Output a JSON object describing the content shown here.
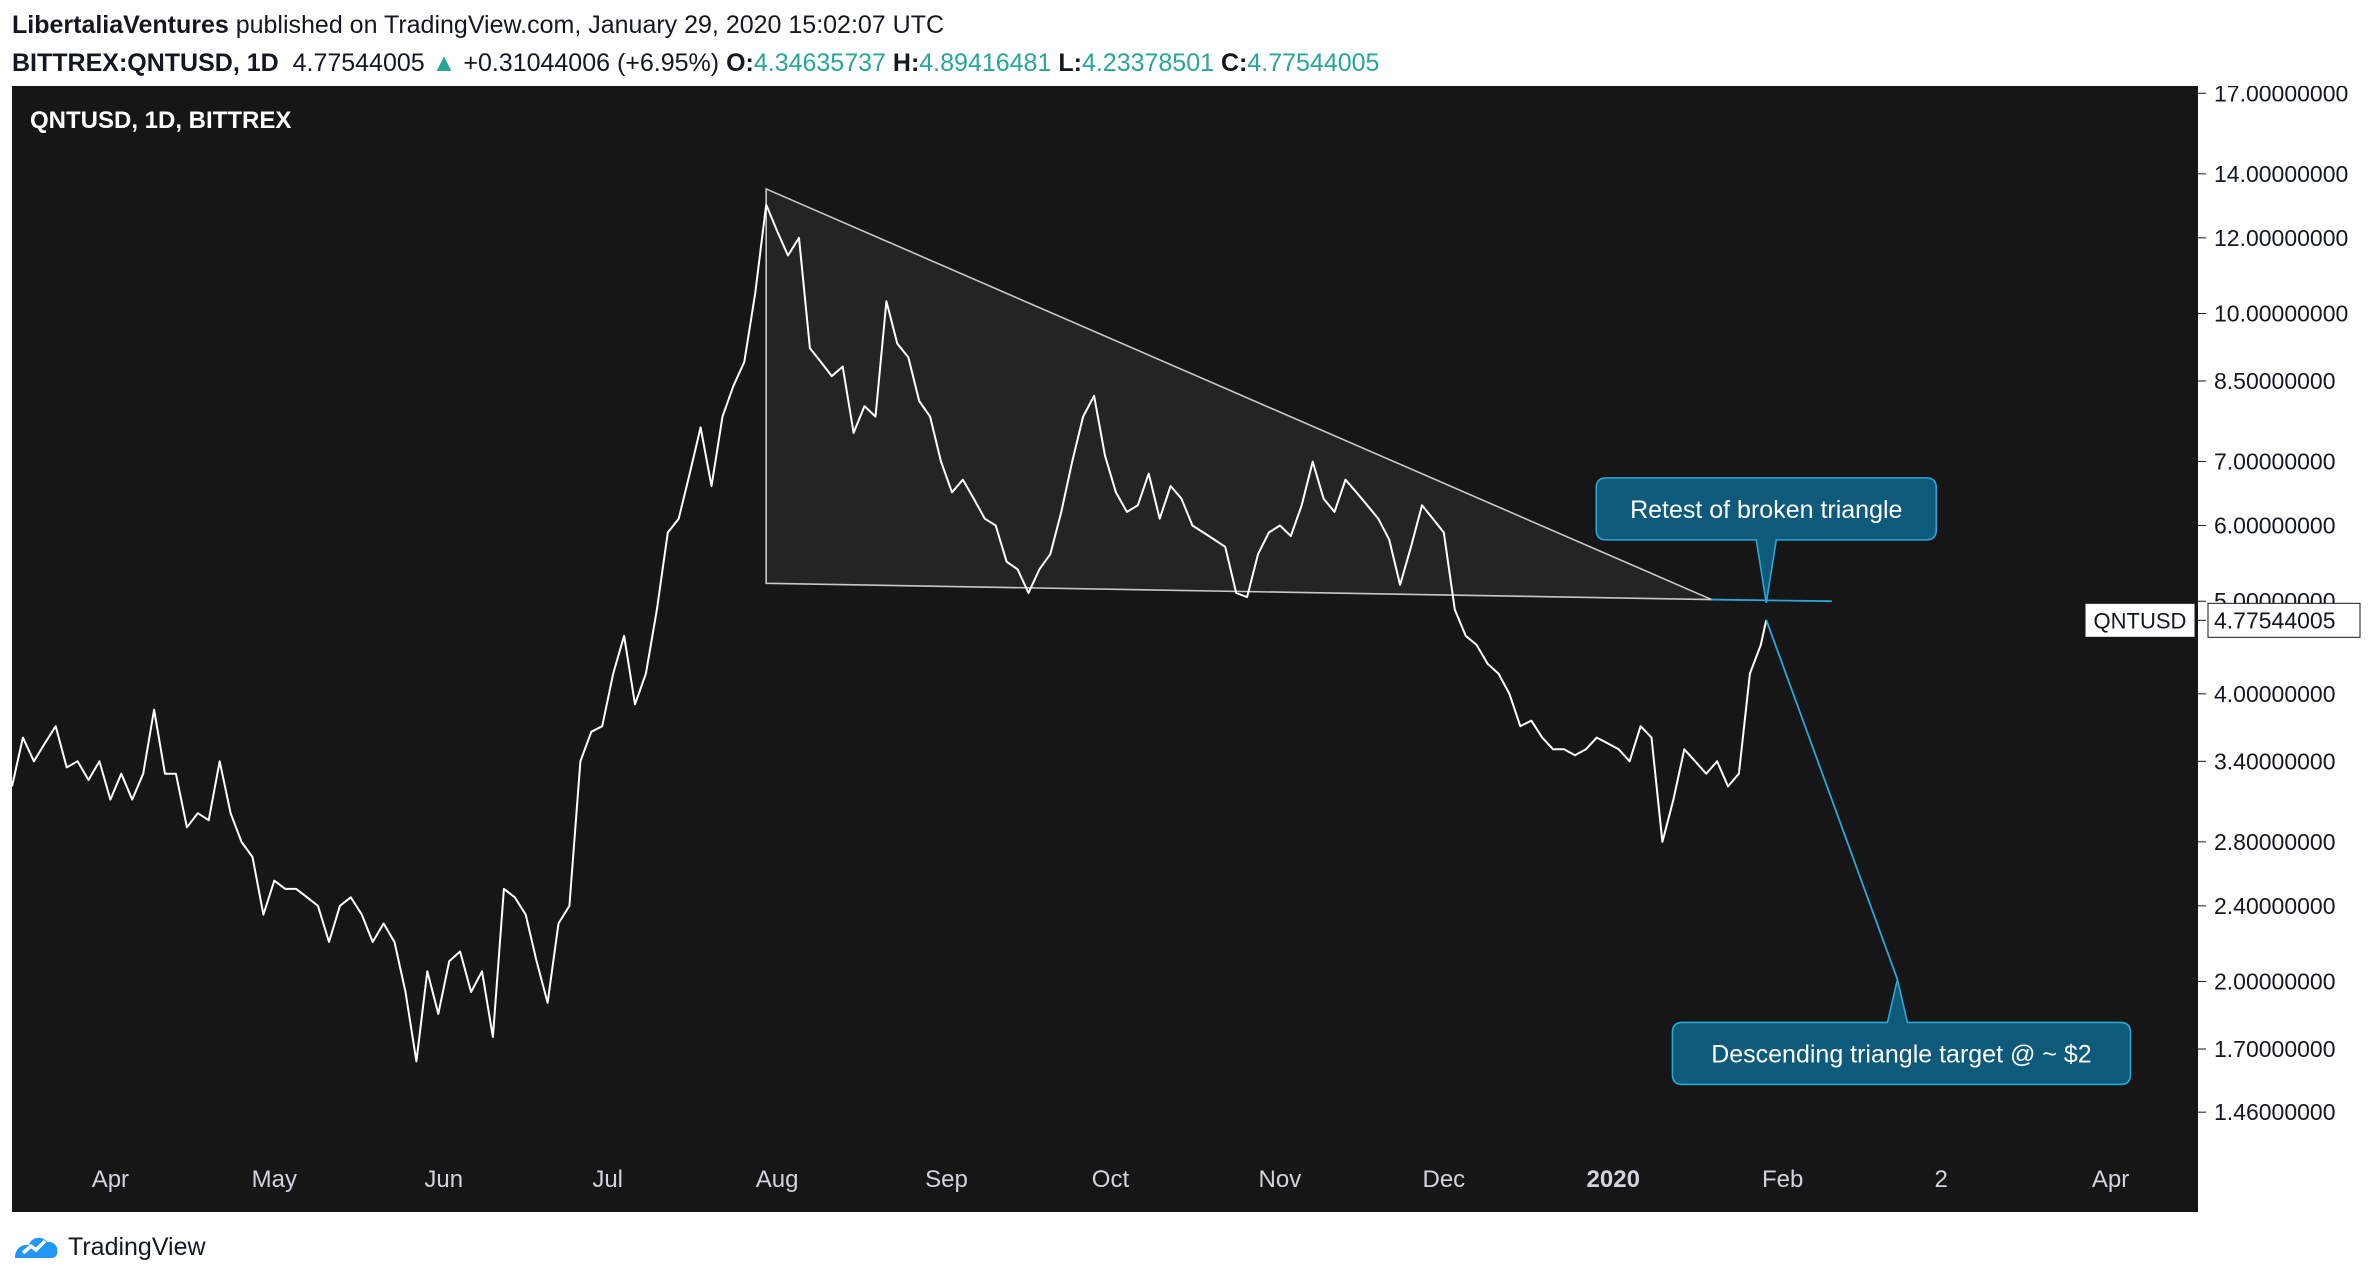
{
  "header": {
    "author": "LibertaliaVentures",
    "published_text": "published on TradingView.com, January 29, 2020 15:02:07 UTC",
    "symbol": "BITTREX:QNTUSD, 1D",
    "last": "4.77544005",
    "change_arrow": "▲",
    "change": "+0.31044006 (+6.95%)",
    "o_label": "O:",
    "o_value": "4.34635737",
    "h_label": "H:",
    "h_value": "4.89416481",
    "l_label": "L:",
    "l_value": "4.23378501",
    "c_label": "C:",
    "c_value": "4.77544005"
  },
  "footer": {
    "brand": "TradingView",
    "logo_icon": "tradingview-logo-icon"
  },
  "colors": {
    "background": "#161616",
    "price_line": "#ffffff",
    "triangle_line": "#c8c8c8",
    "triangle_fill": "#262626",
    "annotation_fill": "#0d5a7a",
    "annotation_border": "#2aa7d6",
    "change_up": "#26a69a"
  },
  "chart_data": {
    "type": "line",
    "title": "QNTUSD, 1D, BITTREX",
    "scale": "log",
    "ylim": [
      1.32,
      17.3
    ],
    "xlim": [
      "2019-03-14",
      "2020-04-17"
    ],
    "grid": false,
    "x_ticks": [
      {
        "label": "Apr",
        "x": "2019-04-01"
      },
      {
        "label": "May",
        "x": "2019-05-01"
      },
      {
        "label": "Jun",
        "x": "2019-06-01"
      },
      {
        "label": "Jul",
        "x": "2019-07-01"
      },
      {
        "label": "Aug",
        "x": "2019-08-01"
      },
      {
        "label": "Sep",
        "x": "2019-09-01"
      },
      {
        "label": "Oct",
        "x": "2019-10-01"
      },
      {
        "label": "Nov",
        "x": "2019-11-01"
      },
      {
        "label": "Dec",
        "x": "2019-12-01"
      },
      {
        "label": "2020",
        "x": "2020-01-01",
        "bold": true
      },
      {
        "label": "Feb",
        "x": "2020-02-01"
      },
      {
        "label": "2",
        "x": "2020-03-01"
      },
      {
        "label": "Apr",
        "x": "2020-04-01"
      }
    ],
    "y_ticks": [
      {
        "label": "17.00000000",
        "value": 17
      },
      {
        "label": "14.00000000",
        "value": 14
      },
      {
        "label": "12.00000000",
        "value": 12
      },
      {
        "label": "10.00000000",
        "value": 10
      },
      {
        "label": "8.50000000",
        "value": 8.5
      },
      {
        "label": "7.00000000",
        "value": 7
      },
      {
        "label": "6.00000000",
        "value": 6
      },
      {
        "label": "5.00000000",
        "value": 5
      },
      {
        "label": "4.00000000",
        "value": 4
      },
      {
        "label": "3.40000000",
        "value": 3.4
      },
      {
        "label": "2.80000000",
        "value": 2.8
      },
      {
        "label": "2.40000000",
        "value": 2.4
      },
      {
        "label": "2.00000000",
        "value": 2
      },
      {
        "label": "1.70000000",
        "value": 1.7
      },
      {
        "label": "1.46000000",
        "value": 1.46
      }
    ],
    "price_label": {
      "symbol": "QNTUSD",
      "value": "4.77544005",
      "y": 4.775
    },
    "series": [
      {
        "name": "QNTUSD",
        "color": "#ffffff",
        "points": [
          [
            "2019-03-14",
            3.2
          ],
          [
            "2019-03-16",
            3.6
          ],
          [
            "2019-03-18",
            3.4
          ],
          [
            "2019-03-20",
            3.55
          ],
          [
            "2019-03-22",
            3.7
          ],
          [
            "2019-03-24",
            3.35
          ],
          [
            "2019-03-26",
            3.4
          ],
          [
            "2019-03-28",
            3.25
          ],
          [
            "2019-03-30",
            3.4
          ],
          [
            "2019-04-01",
            3.1
          ],
          [
            "2019-04-03",
            3.3
          ],
          [
            "2019-04-05",
            3.1
          ],
          [
            "2019-04-07",
            3.3
          ],
          [
            "2019-04-09",
            3.85
          ],
          [
            "2019-04-11",
            3.3
          ],
          [
            "2019-04-13",
            3.3
          ],
          [
            "2019-04-15",
            2.9
          ],
          [
            "2019-04-17",
            3.0
          ],
          [
            "2019-04-19",
            2.95
          ],
          [
            "2019-04-21",
            3.4
          ],
          [
            "2019-04-23",
            3.0
          ],
          [
            "2019-04-25",
            2.8
          ],
          [
            "2019-04-27",
            2.7
          ],
          [
            "2019-04-29",
            2.35
          ],
          [
            "2019-05-01",
            2.55
          ],
          [
            "2019-05-03",
            2.5
          ],
          [
            "2019-05-05",
            2.5
          ],
          [
            "2019-05-07",
            2.45
          ],
          [
            "2019-05-09",
            2.4
          ],
          [
            "2019-05-11",
            2.2
          ],
          [
            "2019-05-13",
            2.4
          ],
          [
            "2019-05-15",
            2.45
          ],
          [
            "2019-05-17",
            2.35
          ],
          [
            "2019-05-19",
            2.2
          ],
          [
            "2019-05-21",
            2.3
          ],
          [
            "2019-05-23",
            2.2
          ],
          [
            "2019-05-25",
            1.95
          ],
          [
            "2019-05-27",
            1.65
          ],
          [
            "2019-05-29",
            2.05
          ],
          [
            "2019-05-31",
            1.85
          ],
          [
            "2019-06-02",
            2.1
          ],
          [
            "2019-06-04",
            2.15
          ],
          [
            "2019-06-06",
            1.95
          ],
          [
            "2019-06-08",
            2.05
          ],
          [
            "2019-06-10",
            1.75
          ],
          [
            "2019-06-12",
            2.5
          ],
          [
            "2019-06-14",
            2.45
          ],
          [
            "2019-06-16",
            2.35
          ],
          [
            "2019-06-18",
            2.1
          ],
          [
            "2019-06-20",
            1.9
          ],
          [
            "2019-06-22",
            2.3
          ],
          [
            "2019-06-24",
            2.4
          ],
          [
            "2019-06-26",
            3.4
          ],
          [
            "2019-06-28",
            3.65
          ],
          [
            "2019-06-30",
            3.7
          ],
          [
            "2019-07-02",
            4.2
          ],
          [
            "2019-07-04",
            4.6
          ],
          [
            "2019-07-06",
            3.9
          ],
          [
            "2019-07-08",
            4.2
          ],
          [
            "2019-07-10",
            4.9
          ],
          [
            "2019-07-12",
            5.9
          ],
          [
            "2019-07-14",
            6.1
          ],
          [
            "2019-07-16",
            6.8
          ],
          [
            "2019-07-18",
            7.6
          ],
          [
            "2019-07-20",
            6.6
          ],
          [
            "2019-07-22",
            7.8
          ],
          [
            "2019-07-24",
            8.4
          ],
          [
            "2019-07-26",
            8.9
          ],
          [
            "2019-07-28",
            10.5
          ],
          [
            "2019-07-30",
            13.0
          ],
          [
            "2019-08-01",
            12.2
          ],
          [
            "2019-08-03",
            11.5
          ],
          [
            "2019-08-05",
            12.0
          ],
          [
            "2019-08-07",
            9.2
          ],
          [
            "2019-08-09",
            8.9
          ],
          [
            "2019-08-11",
            8.6
          ],
          [
            "2019-08-13",
            8.8
          ],
          [
            "2019-08-15",
            7.5
          ],
          [
            "2019-08-17",
            8.0
          ],
          [
            "2019-08-19",
            7.8
          ],
          [
            "2019-08-21",
            10.3
          ],
          [
            "2019-08-23",
            9.3
          ],
          [
            "2019-08-25",
            9.0
          ],
          [
            "2019-08-27",
            8.1
          ],
          [
            "2019-08-29",
            7.8
          ],
          [
            "2019-08-31",
            7.0
          ],
          [
            "2019-09-02",
            6.5
          ],
          [
            "2019-09-04",
            6.7
          ],
          [
            "2019-09-06",
            6.4
          ],
          [
            "2019-09-08",
            6.1
          ],
          [
            "2019-09-10",
            6.0
          ],
          [
            "2019-09-12",
            5.5
          ],
          [
            "2019-09-14",
            5.4
          ],
          [
            "2019-09-16",
            5.1
          ],
          [
            "2019-09-18",
            5.4
          ],
          [
            "2019-09-20",
            5.6
          ],
          [
            "2019-09-22",
            6.2
          ],
          [
            "2019-09-24",
            7.0
          ],
          [
            "2019-09-26",
            7.8
          ],
          [
            "2019-09-28",
            8.2
          ],
          [
            "2019-09-30",
            7.1
          ],
          [
            "2019-10-02",
            6.5
          ],
          [
            "2019-10-04",
            6.2
          ],
          [
            "2019-10-06",
            6.3
          ],
          [
            "2019-10-08",
            6.8
          ],
          [
            "2019-10-10",
            6.1
          ],
          [
            "2019-10-12",
            6.6
          ],
          [
            "2019-10-14",
            6.4
          ],
          [
            "2019-10-16",
            6.0
          ],
          [
            "2019-10-18",
            5.9
          ],
          [
            "2019-10-20",
            5.8
          ],
          [
            "2019-10-22",
            5.7
          ],
          [
            "2019-10-24",
            5.1
          ],
          [
            "2019-10-26",
            5.05
          ],
          [
            "2019-10-28",
            5.6
          ],
          [
            "2019-10-30",
            5.9
          ],
          [
            "2019-11-01",
            6.0
          ],
          [
            "2019-11-03",
            5.85
          ],
          [
            "2019-11-05",
            6.3
          ],
          [
            "2019-11-07",
            7.0
          ],
          [
            "2019-11-09",
            6.4
          ],
          [
            "2019-11-11",
            6.2
          ],
          [
            "2019-11-13",
            6.7
          ],
          [
            "2019-11-15",
            6.5
          ],
          [
            "2019-11-17",
            6.3
          ],
          [
            "2019-11-19",
            6.1
          ],
          [
            "2019-11-21",
            5.8
          ],
          [
            "2019-11-23",
            5.2
          ],
          [
            "2019-11-25",
            5.7
          ],
          [
            "2019-11-27",
            6.3
          ],
          [
            "2019-11-29",
            6.1
          ],
          [
            "2019-12-01",
            5.9
          ],
          [
            "2019-12-03",
            4.9
          ],
          [
            "2019-12-05",
            4.6
          ],
          [
            "2019-12-07",
            4.5
          ],
          [
            "2019-12-09",
            4.3
          ],
          [
            "2019-12-11",
            4.2
          ],
          [
            "2019-12-13",
            4.0
          ],
          [
            "2019-12-15",
            3.7
          ],
          [
            "2019-12-17",
            3.75
          ],
          [
            "2019-12-19",
            3.6
          ],
          [
            "2019-12-21",
            3.5
          ],
          [
            "2019-12-23",
            3.5
          ],
          [
            "2019-12-25",
            3.45
          ],
          [
            "2019-12-27",
            3.5
          ],
          [
            "2019-12-29",
            3.6
          ],
          [
            "2019-12-31",
            3.55
          ],
          [
            "2020-01-02",
            3.5
          ],
          [
            "2020-01-04",
            3.4
          ],
          [
            "2020-01-06",
            3.7
          ],
          [
            "2020-01-08",
            3.6
          ],
          [
            "2020-01-10",
            2.8
          ],
          [
            "2020-01-12",
            3.1
          ],
          [
            "2020-01-14",
            3.5
          ],
          [
            "2020-01-16",
            3.4
          ],
          [
            "2020-01-18",
            3.3
          ],
          [
            "2020-01-20",
            3.4
          ],
          [
            "2020-01-22",
            3.2
          ],
          [
            "2020-01-24",
            3.3
          ],
          [
            "2020-01-26",
            4.2
          ],
          [
            "2020-01-28",
            4.5
          ],
          [
            "2020-01-29",
            4.78
          ]
        ]
      }
    ],
    "triangle": {
      "apex_top": [
        "2019-07-30",
        13.5
      ],
      "base_left": [
        "2019-07-30",
        5.22
      ],
      "apex_right": [
        "2020-01-19",
        5.02
      ]
    },
    "resistance_line": {
      "from": [
        "2020-01-19",
        5.02
      ],
      "to": [
        "2020-02-10",
        5.0
      ]
    },
    "projection_line": {
      "from": [
        "2020-01-29",
        4.78
      ],
      "to": [
        "2020-02-22",
        2.01
      ]
    },
    "annotations": [
      {
        "text": "Retest of broken triangle",
        "pointer": [
          "2020-01-29",
          4.98
        ]
      },
      {
        "text": "Descending triangle target @ ~ $2",
        "pointer": [
          "2020-02-22",
          2.01
        ]
      }
    ]
  }
}
